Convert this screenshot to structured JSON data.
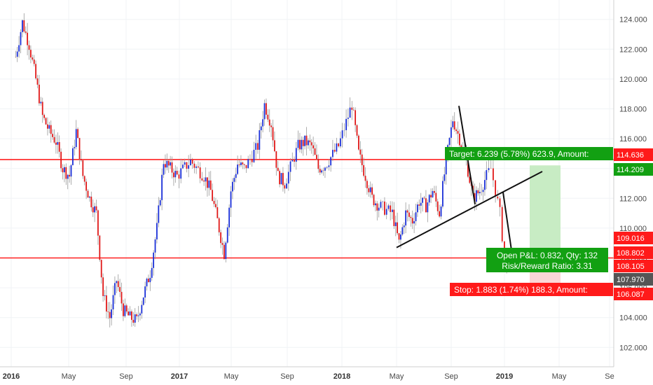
{
  "chart_data": {
    "type": "candlestick",
    "y_axis": {
      "ticks": [
        "124.000",
        "122.000",
        "120.000",
        "118.000",
        "116.000",
        "114.000",
        "112.000",
        "110.000",
        "108.000",
        "106.000",
        "104.000",
        "102.000"
      ],
      "tick_values": [
        124,
        122,
        120,
        118,
        116,
        114,
        112,
        110,
        108,
        106,
        104,
        102
      ],
      "range": [
        100.7,
        125.3
      ]
    },
    "x_axis": {
      "ticks": [
        {
          "label": "2016",
          "bold": true
        },
        {
          "label": "May",
          "bold": false
        },
        {
          "label": "Sep",
          "bold": false
        },
        {
          "label": "2017",
          "bold": true
        },
        {
          "label": "May",
          "bold": false
        },
        {
          "label": "Sep",
          "bold": false
        },
        {
          "label": "2018",
          "bold": true
        },
        {
          "label": "May",
          "bold": false
        },
        {
          "label": "Sep",
          "bold": false
        },
        {
          "label": "2019",
          "bold": true
        },
        {
          "label": "May",
          "bold": false
        },
        {
          "label": "Se",
          "bold": false
        }
      ]
    },
    "horizontal_lines": [
      {
        "price": 114.6,
        "color": "#ff2020"
      },
      {
        "price": 108.0,
        "color": "#ff2020"
      }
    ],
    "price_series": [
      [
        "2016-01",
        121.5
      ],
      [
        "2016-01",
        123.8
      ],
      [
        "2016-02",
        122.3
      ],
      [
        "2016-02",
        120.0
      ],
      [
        "2016-03",
        117.5
      ],
      [
        "2016-03",
        116.5
      ],
      [
        "2016-04",
        115.8
      ],
      [
        "2016-04",
        114.0
      ],
      [
        "2016-05",
        113.5
      ],
      [
        "2016-05",
        116.5
      ],
      [
        "2016-06",
        113.5
      ],
      [
        "2016-06",
        112.0
      ],
      [
        "2016-07",
        111.0
      ],
      [
        "2016-07",
        105.5
      ],
      [
        "2016-08",
        104.0
      ],
      [
        "2016-08",
        106.5
      ],
      [
        "2016-09",
        104.5
      ],
      [
        "2016-09",
        104.0
      ],
      [
        "2016-10",
        103.8
      ],
      [
        "2016-10",
        105.5
      ],
      [
        "2016-11",
        107.0
      ],
      [
        "2016-11",
        110.0
      ],
      [
        "2016-12",
        114.5
      ],
      [
        "2016-12",
        114.0
      ],
      [
        "2017-01",
        113.5
      ],
      [
        "2017-02",
        114.5
      ],
      [
        "2017-03",
        113.5
      ],
      [
        "2017-03",
        112.5
      ],
      [
        "2017-04",
        110.5
      ],
      [
        "2017-04",
        108.3
      ],
      [
        "2017-05",
        112.5
      ],
      [
        "2017-05",
        114.3
      ],
      [
        "2017-06",
        114.0
      ],
      [
        "2017-07",
        115.5
      ],
      [
        "2017-07",
        118.3
      ],
      [
        "2017-08",
        117.0
      ],
      [
        "2017-08",
        113.5
      ],
      [
        "2017-09",
        113.0
      ],
      [
        "2017-10",
        115.5
      ],
      [
        "2017-10",
        115.8
      ],
      [
        "2017-11",
        115.5
      ],
      [
        "2017-11",
        114.0
      ],
      [
        "2017-12",
        114.2
      ],
      [
        "2018-01",
        115.5
      ],
      [
        "2018-02",
        118.3
      ],
      [
        "2018-02",
        115.0
      ],
      [
        "2018-03",
        113.5
      ],
      [
        "2018-03",
        112.0
      ],
      [
        "2018-04",
        111.5
      ],
      [
        "2018-05",
        111.0
      ],
      [
        "2018-05",
        109.0
      ],
      [
        "2018-06",
        111.0
      ],
      [
        "2018-06",
        110.5
      ],
      [
        "2018-07",
        111.8
      ],
      [
        "2018-07",
        111.5
      ],
      [
        "2018-08",
        112.5
      ],
      [
        "2018-08",
        111.0
      ],
      [
        "2018-09",
        114.5
      ],
      [
        "2018-09",
        117.3
      ],
      [
        "2018-10",
        116.0
      ],
      [
        "2018-10",
        114.5
      ],
      [
        "2018-11",
        112.0
      ],
      [
        "2018-11",
        112.5
      ],
      [
        "2018-12",
        113.5
      ],
      [
        "2018-12",
        114.0
      ],
      [
        "2018-12",
        112.5
      ],
      [
        "2019-01",
        111.0
      ],
      [
        "2019-01",
        108.0
      ],
      [
        "2019-01",
        106.8
      ]
    ],
    "annotations": [
      "Target: 6.239 (5.78%) 623.9, Amount: ...",
      "Open P&L: 0.832, Qty: 132",
      "Risk/Reward Ratio: 3.31",
      "Stop: 1.883 (1.74%) 188.3, Amount: ..."
    ]
  },
  "position": {
    "target_text": "Target: 6.239 (5.78%) 623.9, Amount: ",
    "pnl_text": "Open P&L: 0.832, Qty: 132",
    "rr_text": "Risk/Reward Ratio: 3.31",
    "stop_text": "Stop: 1.883 (1.74%) 188.3, Amount: ",
    "colors": {
      "target": "#12a012",
      "stop": "#ff1a1a",
      "profit_zone": "#c8ecc4",
      "loss_zone": "#fbd6d6"
    }
  },
  "price_labels": [
    {
      "text": "114.636",
      "color": "#ff1a1a"
    },
    {
      "text": "114.209",
      "color": "#12a012"
    },
    {
      "text": "109.016",
      "color": "#ff1a1a"
    },
    {
      "text": "108.802",
      "color": "#ff1a1a"
    },
    {
      "text": "108.105",
      "color": "#ff1a1a"
    },
    {
      "text": "107.970",
      "color": "#555555"
    },
    {
      "text": "106.087",
      "color": "#ff1a1a"
    }
  ]
}
